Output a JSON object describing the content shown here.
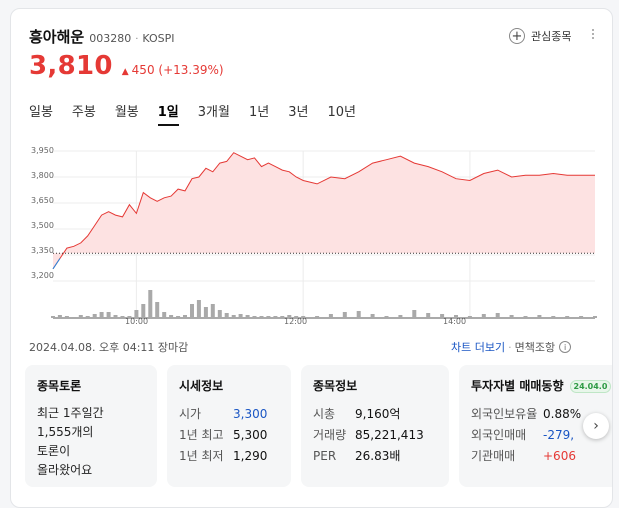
{
  "stock": {
    "name": "흥아해운",
    "code": "003280",
    "market": "KOSPI",
    "price": "3,810",
    "change": "450",
    "change_pct": "(+13.39%)",
    "change_color": "#e53935"
  },
  "favorite_label": "관심종목",
  "tabs": [
    "일봉",
    "주봉",
    "월봉",
    "1일",
    "3개월",
    "1년",
    "3년",
    "10년"
  ],
  "active_tab": "1일",
  "chart_data": {
    "type": "area",
    "y_ticks": [
      "3,950",
      "3,800",
      "3,650",
      "3,500",
      "3,350",
      "3,200"
    ],
    "x_ticks": [
      "10:00",
      "12:00",
      "14:00"
    ],
    "ylim": [
      3200,
      3950
    ],
    "prev_close": 3360,
    "x": [
      "09:00",
      "09:05",
      "09:10",
      "09:15",
      "09:20",
      "09:25",
      "09:30",
      "09:35",
      "09:40",
      "09:45",
      "09:50",
      "09:55",
      "10:00",
      "10:05",
      "10:10",
      "10:15",
      "10:20",
      "10:25",
      "10:30",
      "10:35",
      "10:40",
      "10:45",
      "10:50",
      "10:55",
      "11:00",
      "11:05",
      "11:10",
      "11:15",
      "11:20",
      "11:25",
      "11:30",
      "11:35",
      "11:40",
      "11:45",
      "11:50",
      "11:55",
      "12:00",
      "12:10",
      "12:20",
      "12:30",
      "12:40",
      "12:50",
      "13:00",
      "13:10",
      "13:20",
      "13:30",
      "13:40",
      "13:50",
      "14:00",
      "14:10",
      "14:20",
      "14:30",
      "14:40",
      "14:50",
      "15:00",
      "15:10",
      "15:20",
      "15:30"
    ],
    "series": [
      {
        "values": [
          3270,
          3330,
          3390,
          3400,
          3420,
          3460,
          3520,
          3580,
          3600,
          3580,
          3570,
          3640,
          3590,
          3710,
          3680,
          3660,
          3680,
          3690,
          3730,
          3720,
          3790,
          3800,
          3850,
          3830,
          3880,
          3890,
          3940,
          3920,
          3900,
          3910,
          3860,
          3880,
          3860,
          3840,
          3830,
          3800,
          3780,
          3760,
          3800,
          3790,
          3830,
          3880,
          3900,
          3920,
          3880,
          3860,
          3830,
          3790,
          3780,
          3820,
          3840,
          3800,
          3810,
          3810,
          3820,
          3810,
          3810,
          3810
        ]
      }
    ],
    "volume": [
      2,
      3,
      2,
      1,
      3,
      2,
      4,
      6,
      6,
      3,
      2,
      2,
      8,
      14,
      28,
      16,
      6,
      3,
      2,
      3,
      14,
      18,
      11,
      14,
      8,
      5,
      3,
      4,
      3,
      2,
      2,
      2,
      2,
      2,
      3,
      2,
      2,
      2,
      4,
      6,
      7,
      4,
      2,
      3,
      8,
      5,
      4,
      3,
      2,
      4,
      5,
      3,
      2,
      3,
      2,
      2,
      2,
      2
    ]
  },
  "meta": {
    "datetime": "2024.04.08. 오후 04:11",
    "status": "장마감",
    "chart_more": "차트 더보기",
    "range_label": "면책조항"
  },
  "boxes": {
    "discussion": {
      "title": "종목토론",
      "text_lines": [
        "최근 1주일간",
        "1,555개의",
        "토론이",
        "올라왔어요"
      ]
    },
    "quote": {
      "title": "시세정보",
      "rows": [
        {
          "k": "시가",
          "v": "3,300"
        },
        {
          "k": "1년 최고",
          "v": "5,300"
        },
        {
          "k": "1년 최저",
          "v": "1,290"
        }
      ]
    },
    "info": {
      "title": "종목정보",
      "rows": [
        {
          "k": "시총",
          "v": "9,160억"
        },
        {
          "k": "거래량",
          "v": "85,221,413"
        },
        {
          "k": "PER",
          "v": "26.83배"
        }
      ]
    },
    "investor": {
      "title": "투자자별 매매동향",
      "badge": "24.04.0",
      "rows": [
        {
          "k": "외국인보유율",
          "v": "0.88%"
        },
        {
          "k": "외국인매매",
          "v": "-279,"
        },
        {
          "k": "기관매매",
          "v": "+606"
        }
      ]
    }
  }
}
